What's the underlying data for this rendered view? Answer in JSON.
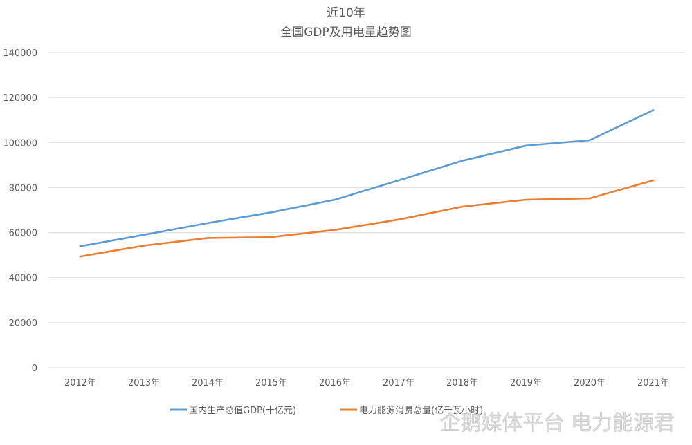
{
  "chart_data": {
    "type": "line",
    "title": [
      "近10年",
      "全国GDP及用电量趋势图"
    ],
    "xlabel": "",
    "ylabel": "",
    "ylim": [
      0,
      140000
    ],
    "yticks": [
      0,
      20000,
      40000,
      60000,
      80000,
      100000,
      120000,
      140000
    ],
    "ytick_labels": [
      "0",
      "20000",
      "40000",
      "60000",
      "80000",
      "100000",
      "120000",
      "140000"
    ],
    "categories": [
      "2012年",
      "2013年",
      "2014年",
      "2015年",
      "2016年",
      "2017年",
      "2018年",
      "2019年",
      "2020年",
      "2021年"
    ],
    "grid": true,
    "legend_position": "bottom",
    "series": [
      {
        "name": "国内生产总值GDP(十亿元)",
        "color": "#5b9bd5",
        "values": [
          53900,
          59000,
          64200,
          69000,
          74600,
          83200,
          91900,
          98600,
          101000,
          114400
        ]
      },
      {
        "name": "电力能源消费总量(亿千瓦小时)",
        "color": "#ed7d31",
        "values": [
          49400,
          54200,
          57600,
          58000,
          61200,
          65800,
          71500,
          74600,
          75200,
          83200
        ]
      }
    ]
  },
  "watermark": "企鹅媒体平台 电力能源君"
}
